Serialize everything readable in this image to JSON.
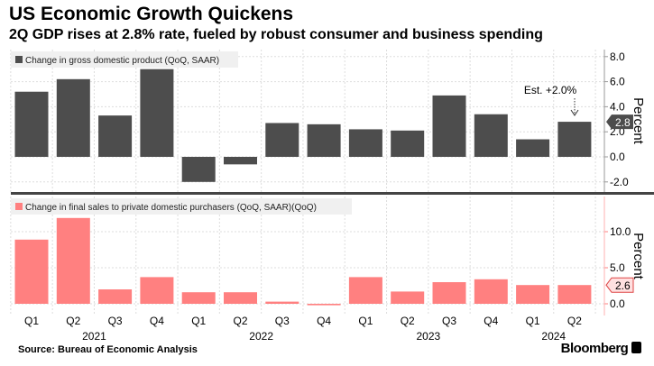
{
  "title": "US Economic Growth Quickens",
  "subtitle": "2Q GDP rises at 2.8% rate, fueled by robust consumer and business spending",
  "source": "Source: Bureau of Economic Analysis",
  "brand": "Bloomberg",
  "chart_data": [
    {
      "type": "bar",
      "legend": "Change in gross domestic product (QoQ, SAAR)",
      "ylabel": "Percent",
      "color": "#4d4d4d",
      "categories": [
        "Q1 2021",
        "Q2 2021",
        "Q3 2021",
        "Q4 2021",
        "Q1 2022",
        "Q2 2022",
        "Q3 2022",
        "Q4 2022",
        "Q1 2023",
        "Q2 2023",
        "Q3 2023",
        "Q4 2023",
        "Q1 2024",
        "Q2 2024"
      ],
      "values": [
        5.2,
        6.2,
        3.3,
        7.0,
        -2.0,
        -0.6,
        2.7,
        2.6,
        2.2,
        2.1,
        4.9,
        3.4,
        1.4,
        2.8
      ],
      "ylim": [
        -3,
        8.5
      ],
      "yticks": [
        "8.0",
        "6.0",
        "4.0",
        "2.0",
        "0.0",
        "-2.0"
      ],
      "last_value_label": "2.8",
      "annotation": "Est. +2.0%",
      "grid": true
    },
    {
      "type": "bar",
      "legend": "Change in final sales to private domestic purchasers (QoQ, SAAR)(QoQ)",
      "ylabel": "Percent",
      "color": "#ff8080",
      "categories": [
        "Q1 2021",
        "Q2 2021",
        "Q3 2021",
        "Q4 2021",
        "Q1 2022",
        "Q2 2022",
        "Q3 2022",
        "Q4 2022",
        "Q1 2023",
        "Q2 2023",
        "Q3 2023",
        "Q4 2023",
        "Q1 2024",
        "Q2 2024"
      ],
      "values": [
        8.9,
        11.9,
        2.0,
        3.7,
        1.6,
        1.6,
        0.3,
        -0.2,
        3.7,
        1.7,
        3.0,
        3.4,
        2.6,
        2.6
      ],
      "ylim": [
        -1.5,
        13
      ],
      "yticks": [
        "10.0",
        "5.0",
        "0.0"
      ],
      "last_value_label": "2.6",
      "grid": true
    }
  ],
  "xaxis": {
    "quarters": [
      "Q1",
      "Q2",
      "Q3",
      "Q4",
      "Q1",
      "Q2",
      "Q3",
      "Q4",
      "Q1",
      "Q2",
      "Q3",
      "Q4",
      "Q1",
      "Q2"
    ],
    "years": [
      "2021",
      "2022",
      "2023",
      "2024"
    ]
  }
}
